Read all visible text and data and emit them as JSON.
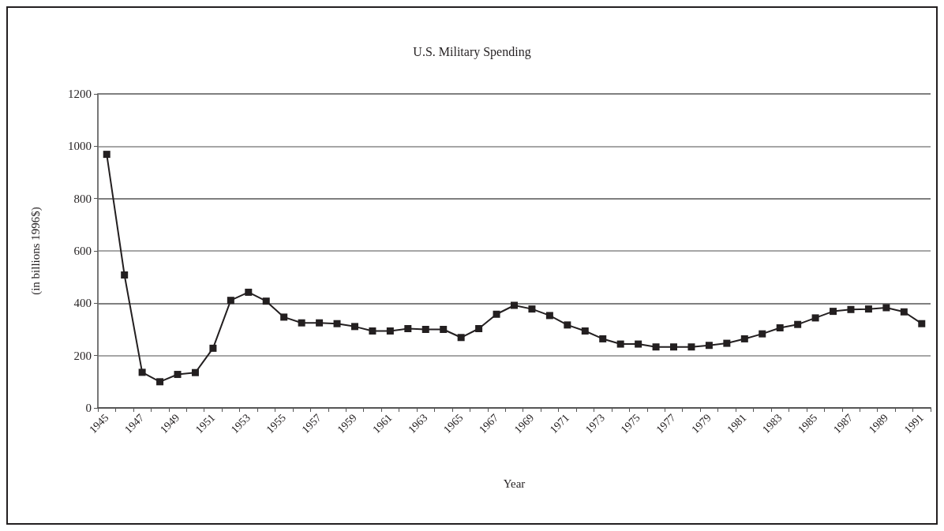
{
  "chart_data": {
    "type": "line",
    "title": "U.S. Military Spending",
    "xlabel": "Year",
    "ylabel": "(in billions 1996$)",
    "categories": [
      "1945",
      null,
      "1947",
      null,
      "1949",
      null,
      "1951",
      null,
      "1953",
      null,
      "1955",
      null,
      "1957",
      null,
      "1959",
      null,
      "1961",
      null,
      "1963",
      null,
      "1965",
      null,
      "1967",
      null,
      "1969",
      null,
      "1971",
      null,
      "1973",
      null,
      "1975",
      null,
      "1977",
      null,
      "1979",
      null,
      "1981",
      null,
      "1983",
      null,
      "1985",
      null,
      "1987",
      null,
      "1989",
      null,
      "1991"
    ],
    "series": [
      {
        "color": "#231f20",
        "values": [
          969,
          508,
          136,
          100,
          128,
          135,
          228,
          411,
          442,
          408,
          347,
          325,
          325,
          322,
          311,
          294,
          294,
          303,
          300,
          300,
          269,
          303,
          358,
          392,
          378,
          353,
          317,
          294,
          264,
          244,
          244,
          233,
          233,
          233,
          239,
          247,
          264,
          283,
          306,
          319,
          344,
          369,
          376,
          378,
          383,
          367,
          322
        ]
      }
    ],
    "ylim": [
      0,
      1200
    ],
    "yticks": [
      0,
      200,
      400,
      600,
      800,
      1000,
      1200
    ],
    "grid": "y",
    "marker": "square",
    "line_style": "solid"
  }
}
